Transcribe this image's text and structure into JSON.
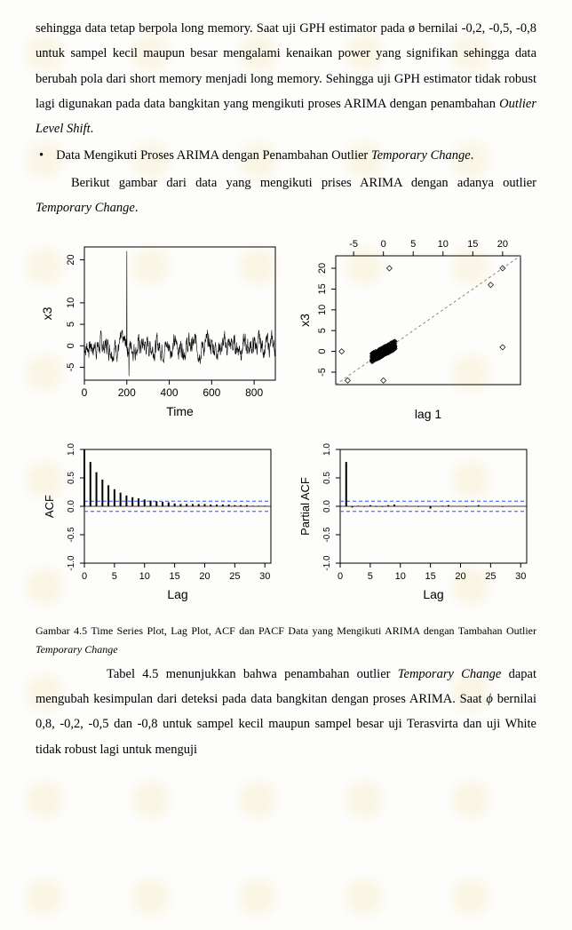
{
  "text": {
    "para1": "sehingga data tetap berpola long memory. Saat uji GPH estimator pada ø bernilai -0,2, -0,5, -0,8 untuk sampel kecil maupun besar mengalami kenaikan power yang signifikan sehingga data berubah pola dari short memory menjadi long memory. Sehingga uji GPH estimator tidak robust lagi digunakan pada data bangkitan yang mengikuti proses ARIMA dengan penambahan ",
    "para1_italic": "Outlier Level Shift",
    "para1_end": ".",
    "bullet": "Data Mengikuti Proses ARIMA dengan Penambahan Outlier ",
    "bullet_italic": "Temporary Change",
    "bullet_end": ".",
    "para2a": "Berikut gambar dari data yang mengikuti prises ARIMA dengan adanya outlier ",
    "para2_italic": "Temporary Change",
    "para2b": ".",
    "caption_a": "Gambar 4.5 Time Series Plot, Lag Plot, ACF dan PACF Data yang Mengikuti ARIMA dengan Tambahan Outlier ",
    "caption_italic": "Temporary Change",
    "para3a": "Tabel  4.5 menunjukkan bahwa penambahan outlier ",
    "para3_italic1": "Temporary Change",
    "para3b": " dapat mengubah kesimpulan dari deteksi pada data bangkitan dengan proses ARIMA. Saat ",
    "phi": "ϕ",
    "para3c": " bernilai 0,8, -0,2, -0,5 dan -0,8 untuk sampel kecil maupun sampel besar uji Terasvirta dan uji White tidak robust lagi untuk menguji"
  },
  "charts": {
    "ts": {
      "type": "line",
      "xlabel": "Time",
      "ylabel": "x3",
      "xlim": [
        0,
        900
      ],
      "ylim": [
        -8,
        23
      ],
      "xticks": [
        0,
        200,
        400,
        600,
        800
      ],
      "yticks": [
        -5,
        0,
        5,
        10,
        20
      ],
      "axis_color": "#000000",
      "line_color": "#000000",
      "bg": "#ffffff",
      "spike_x": 200,
      "spike_y": 22
    },
    "lag": {
      "type": "scatter",
      "xlabel": "lag 1",
      "ylabel": "x3",
      "xlim": [
        -8,
        23
      ],
      "ylim": [
        -8,
        23
      ],
      "xticks_top": [
        -5,
        0,
        5,
        10,
        15,
        20
      ],
      "yticks": [
        -5,
        0,
        5,
        10,
        15,
        20
      ],
      "marker": "diamond",
      "marker_color": "#000000",
      "marker_fill": "none",
      "diag_color": "#888888",
      "diag_dash": "3,3"
    },
    "acf": {
      "type": "bar",
      "xlabel": "Lag",
      "ylabel": "ACF",
      "xlim": [
        0,
        31
      ],
      "ylim": [
        -1.0,
        1.0
      ],
      "xticks": [
        0,
        5,
        10,
        15,
        20,
        25,
        30
      ],
      "yticks": [
        -1.0,
        -0.5,
        0.0,
        0.5,
        1.0
      ],
      "values": [
        1.0,
        0.78,
        0.6,
        0.47,
        0.37,
        0.3,
        0.24,
        0.19,
        0.16,
        0.14,
        0.12,
        0.1,
        0.09,
        0.08,
        0.07,
        0.05,
        0.04,
        0.04,
        0.04,
        0.04,
        0.04,
        0.03,
        0.03,
        0.03,
        0.03,
        0.02,
        0.02,
        0.02,
        0.01,
        0.01,
        0.01
      ],
      "ci": 0.09,
      "ci_color": "#2a4cff",
      "ci_dash": "4,3",
      "bar_color": "#000000"
    },
    "pacf": {
      "type": "bar",
      "xlabel": "Lag",
      "ylabel": "Partial ACF",
      "xlim": [
        0,
        31
      ],
      "ylim": [
        -1.0,
        1.0
      ],
      "xticks": [
        0,
        5,
        10,
        15,
        20,
        25,
        30
      ],
      "yticks": [
        -1.0,
        -0.5,
        0.0,
        0.5,
        1.0
      ],
      "values": [
        0.78,
        -0.02,
        0.01,
        -0.01,
        0.02,
        -0.01,
        -0.01,
        0.02,
        0.03,
        0.0,
        0.01,
        0.0,
        -0.01,
        0.0,
        -0.04,
        0.0,
        0.01,
        0.02,
        0.0,
        0.0,
        -0.01,
        0.0,
        0.02,
        0.0,
        0.0,
        0.0,
        -0.01,
        0.0,
        0.0,
        0.0
      ],
      "ci": 0.09,
      "ci_color": "#2a4cff",
      "ci_dash": "4,3",
      "bar_color": "#000000"
    },
    "label_fontsize": 13,
    "tick_fontsize": 11
  },
  "colors": {
    "text": "#000000",
    "page_bg": "#fdfdfb",
    "watermark": "#dca900"
  }
}
